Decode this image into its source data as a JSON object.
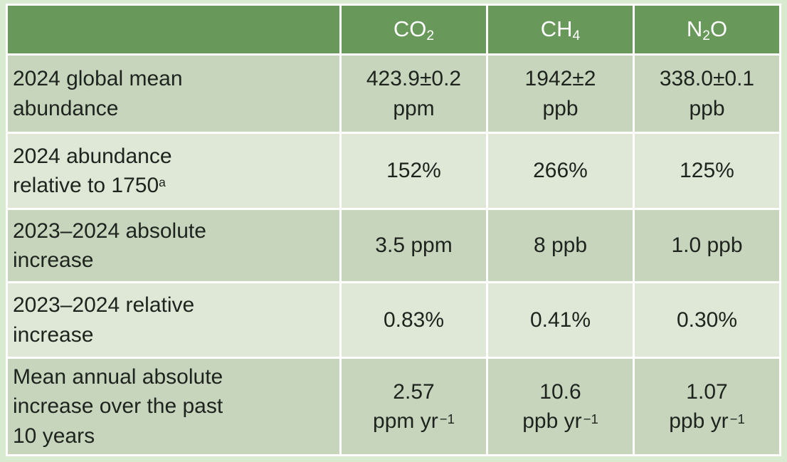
{
  "colors": {
    "frame_bg": "#d8ead0",
    "header_bg": "#69985b",
    "header_text": "#ffffff",
    "row_odd_bg": "#c7d5bd",
    "row_even_bg": "#dfe8d7",
    "gridline": "#ffffff",
    "body_text": "#1e231e"
  },
  "header": {
    "gases": [
      {
        "pre": "CO",
        "sub": "2",
        "post": ""
      },
      {
        "pre": "CH",
        "sub": "4",
        "post": ""
      },
      {
        "pre": "N",
        "sub": "2",
        "post": "O"
      }
    ]
  },
  "rows": [
    {
      "label_lines": [
        "2024 global mean",
        "abundance"
      ],
      "cells": [
        {
          "value": "423.9±0.2",
          "unit": "ppm"
        },
        {
          "value": "1942±2",
          "unit": "ppb"
        },
        {
          "value": "338.0±0.1",
          "unit": "ppb"
        }
      ]
    },
    {
      "label_lines": [
        "2024 abundance",
        "relative to 1750"
      ],
      "label_sup": "a",
      "cells": [
        {
          "value": "152%"
        },
        {
          "value": "266%"
        },
        {
          "value": "125%"
        }
      ]
    },
    {
      "label_lines": [
        "2023–2024 absolute",
        "increase"
      ],
      "cells": [
        {
          "value": "3.5 ppm"
        },
        {
          "value": "8 ppb"
        },
        {
          "value": "1.0 ppb"
        }
      ]
    },
    {
      "label_lines": [
        "2023–2024 relative",
        "increase"
      ],
      "cells": [
        {
          "value": "0.83%"
        },
        {
          "value": "0.41%"
        },
        {
          "value": "0.30%"
        }
      ]
    },
    {
      "label_lines": [
        "Mean annual absolute",
        "increase over the past",
        "10 years"
      ],
      "cells": [
        {
          "value": "2.57",
          "unit": "ppm yr",
          "unit_sup": "−1"
        },
        {
          "value": "10.6",
          "unit": "ppb yr",
          "unit_sup": "−1"
        },
        {
          "value": "1.07",
          "unit": "ppb yr",
          "unit_sup": "−1"
        }
      ]
    }
  ],
  "chart_data": {
    "type": "table",
    "columns": [
      "",
      "CO2",
      "CH4",
      "N2O"
    ],
    "rows": [
      {
        "label": "2024 global mean abundance",
        "values": [
          "423.9±0.2 ppm",
          "1942±2 ppb",
          "338.0±0.1 ppb"
        ]
      },
      {
        "label": "2024 abundance relative to 1750 (a)",
        "values": [
          "152%",
          "266%",
          "125%"
        ]
      },
      {
        "label": "2023–2024 absolute increase",
        "values": [
          "3.5 ppm",
          "8 ppb",
          "1.0 ppb"
        ]
      },
      {
        "label": "2023–2024 relative increase",
        "values": [
          "0.83%",
          "0.41%",
          "0.30%"
        ]
      },
      {
        "label": "Mean annual absolute increase over the past 10 years",
        "values": [
          "2.57 ppm yr−1",
          "10.6 ppb yr−1",
          "1.07 ppb yr−1"
        ]
      }
    ]
  }
}
